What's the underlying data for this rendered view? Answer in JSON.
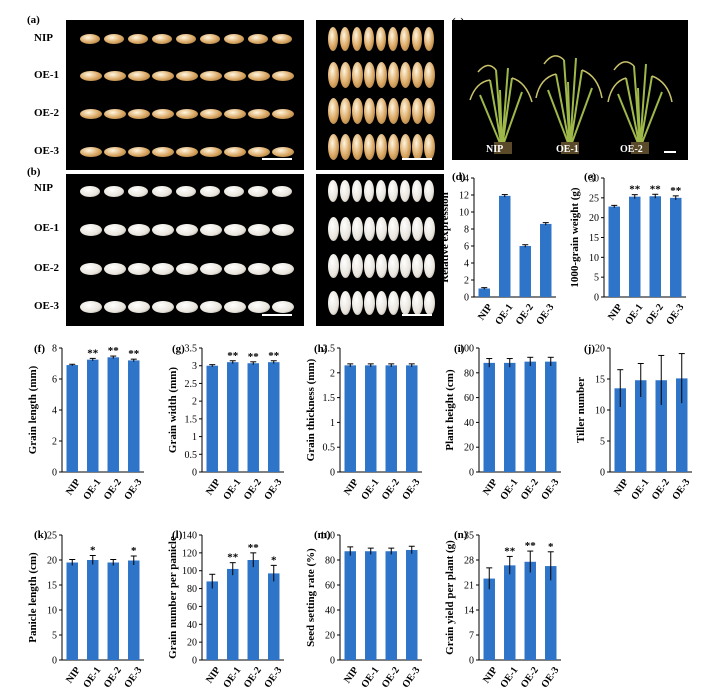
{
  "lines": [
    "NIP",
    "OE-1",
    "OE-2",
    "OE-3"
  ],
  "panels": {
    "a": {
      "label": "(a)"
    },
    "b": {
      "label": "(b)"
    },
    "c": {
      "label": "(c)",
      "plant_labels": [
        "NIP",
        "OE-1",
        "OE-2"
      ]
    }
  },
  "colors": {
    "bar": "#2e75c9",
    "grain_a": "#d9a560",
    "grain_b": "#e8e4dc",
    "photo_bg": "#000000",
    "plant": "#9fb84a"
  },
  "chart_data": [
    {
      "id": "d",
      "label": "(d)",
      "type": "bar",
      "categories": [
        "NIP",
        "OE-1",
        "OE-2",
        "OE-3"
      ],
      "values": [
        1.0,
        11.9,
        6.0,
        8.6
      ],
      "errors": [
        0.1,
        0.15,
        0.15,
        0.15
      ],
      "ylabel": "Relative expression",
      "ylim": [
        0,
        14
      ],
      "yticks": [
        0,
        2,
        4,
        6,
        8,
        10,
        12,
        14
      ],
      "sig": [
        "",
        "",
        "",
        ""
      ]
    },
    {
      "id": "e",
      "label": "(e)",
      "type": "bar",
      "categories": [
        "NIP",
        "OE-1",
        "OE-2",
        "OE-3"
      ],
      "values": [
        22.8,
        25.3,
        25.4,
        25.0
      ],
      "errors": [
        0.3,
        0.5,
        0.5,
        0.5
      ],
      "ylabel": "1000-grain weight (g)",
      "ylim": [
        0,
        30
      ],
      "yticks": [
        0,
        5,
        10,
        15,
        20,
        25,
        30
      ],
      "sig": [
        "",
        "**",
        "**",
        "**"
      ]
    },
    {
      "id": "f",
      "label": "(f)",
      "type": "bar",
      "categories": [
        "NIP",
        "OE-1",
        "OE-2",
        "OE-3"
      ],
      "values": [
        6.9,
        7.25,
        7.4,
        7.2
      ],
      "errors": [
        0.05,
        0.08,
        0.08,
        0.08
      ],
      "ylabel": "Grain length (mm)",
      "ylim": [
        0,
        8
      ],
      "yticks": [
        0,
        2,
        4,
        6,
        8
      ],
      "sig": [
        "",
        "**",
        "**",
        "**"
      ]
    },
    {
      "id": "g",
      "label": "(g)",
      "type": "bar",
      "categories": [
        "NIP",
        "OE-1",
        "OE-2",
        "OE-3"
      ],
      "values": [
        3.0,
        3.1,
        3.07,
        3.1
      ],
      "errors": [
        0.03,
        0.04,
        0.04,
        0.04
      ],
      "ylabel": "Grain width (mm)",
      "ylim": [
        0,
        3.5
      ],
      "yticks": [
        0,
        0.5,
        1,
        1.5,
        2,
        2.5,
        3,
        3.5
      ],
      "sig": [
        "",
        "**",
        "**",
        "**"
      ]
    },
    {
      "id": "h",
      "label": "(h)",
      "type": "bar",
      "categories": [
        "NIP",
        "OE-1",
        "OE-2",
        "OE-3"
      ],
      "values": [
        2.15,
        2.15,
        2.15,
        2.15
      ],
      "errors": [
        0.03,
        0.03,
        0.03,
        0.03
      ],
      "ylabel": "Grain thickness (mm)",
      "ylim": [
        0,
        2.5
      ],
      "yticks": [
        0,
        0.5,
        1,
        1.5,
        2,
        2.5
      ],
      "sig": [
        "",
        "",
        "",
        ""
      ]
    },
    {
      "id": "i",
      "label": "(i)",
      "type": "bar",
      "categories": [
        "NIP",
        "OE-1",
        "OE-2",
        "OE-3"
      ],
      "values": [
        88,
        88,
        89,
        89
      ],
      "errors": [
        3.5,
        3.5,
        3.5,
        3.5
      ],
      "ylabel": "Plant height (cm)",
      "ylim": [
        0,
        100
      ],
      "yticks": [
        0,
        20,
        40,
        60,
        80,
        100
      ],
      "sig": [
        "",
        "",
        "",
        ""
      ]
    },
    {
      "id": "j",
      "label": "(j)",
      "type": "bar",
      "categories": [
        "NIP",
        "OE-1",
        "OE-2",
        "OE-3"
      ],
      "values": [
        13.5,
        14.8,
        14.8,
        15.1
      ],
      "errors": [
        3.0,
        2.7,
        4.0,
        4.0
      ],
      "ylabel": "Tiller number",
      "ylim": [
        0,
        20
      ],
      "yticks": [
        0,
        5,
        10,
        15,
        20
      ],
      "sig": [
        "",
        "",
        "",
        ""
      ]
    },
    {
      "id": "k",
      "label": "(k)",
      "type": "bar",
      "categories": [
        "NIP",
        "OE-1",
        "OE-2",
        "OE-3"
      ],
      "values": [
        19.5,
        20.0,
        19.5,
        19.9
      ],
      "errors": [
        0.6,
        0.9,
        0.6,
        0.9
      ],
      "ylabel": "Panicle length (cm)",
      "ylim": [
        0,
        25
      ],
      "yticks": [
        0,
        5,
        10,
        15,
        20,
        25
      ],
      "sig": [
        "",
        "*",
        "",
        "*"
      ]
    },
    {
      "id": "l",
      "label": "(l)",
      "type": "bar",
      "categories": [
        "NIP",
        "OE-1",
        "OE-2",
        "OE-3"
      ],
      "values": [
        88,
        102,
        112,
        97
      ],
      "errors": [
        8,
        7,
        8,
        9
      ],
      "ylabel": "Grain number per panicle",
      "ylim": [
        0,
        140
      ],
      "yticks": [
        0,
        20,
        40,
        60,
        80,
        100,
        120,
        140
      ],
      "sig": [
        "",
        "**",
        "**",
        "*"
      ]
    },
    {
      "id": "m",
      "label": "(m)",
      "type": "bar",
      "categories": [
        "NIP",
        "OE-1",
        "OE-2",
        "OE-3"
      ],
      "values": [
        87,
        87,
        87,
        88
      ],
      "errors": [
        3.5,
        2.5,
        2.5,
        3.0
      ],
      "ylabel": "Seed setting rate (%)",
      "ylim": [
        0,
        100
      ],
      "yticks": [
        0,
        20,
        40,
        60,
        80,
        100
      ],
      "sig": [
        "",
        "",
        "",
        ""
      ]
    },
    {
      "id": "n",
      "label": "(n)",
      "type": "bar",
      "categories": [
        "NIP",
        "OE-1",
        "OE-2",
        "OE-3"
      ],
      "values": [
        22.8,
        26.5,
        27.5,
        26.3
      ],
      "errors": [
        3.0,
        2.5,
        3.0,
        4.0
      ],
      "ylabel": "Grain yield per plant (g)",
      "ylim": [
        0,
        35
      ],
      "yticks": [
        0,
        7,
        14,
        21,
        28,
        35
      ],
      "sig": [
        "",
        "**",
        "**",
        "*"
      ]
    }
  ]
}
